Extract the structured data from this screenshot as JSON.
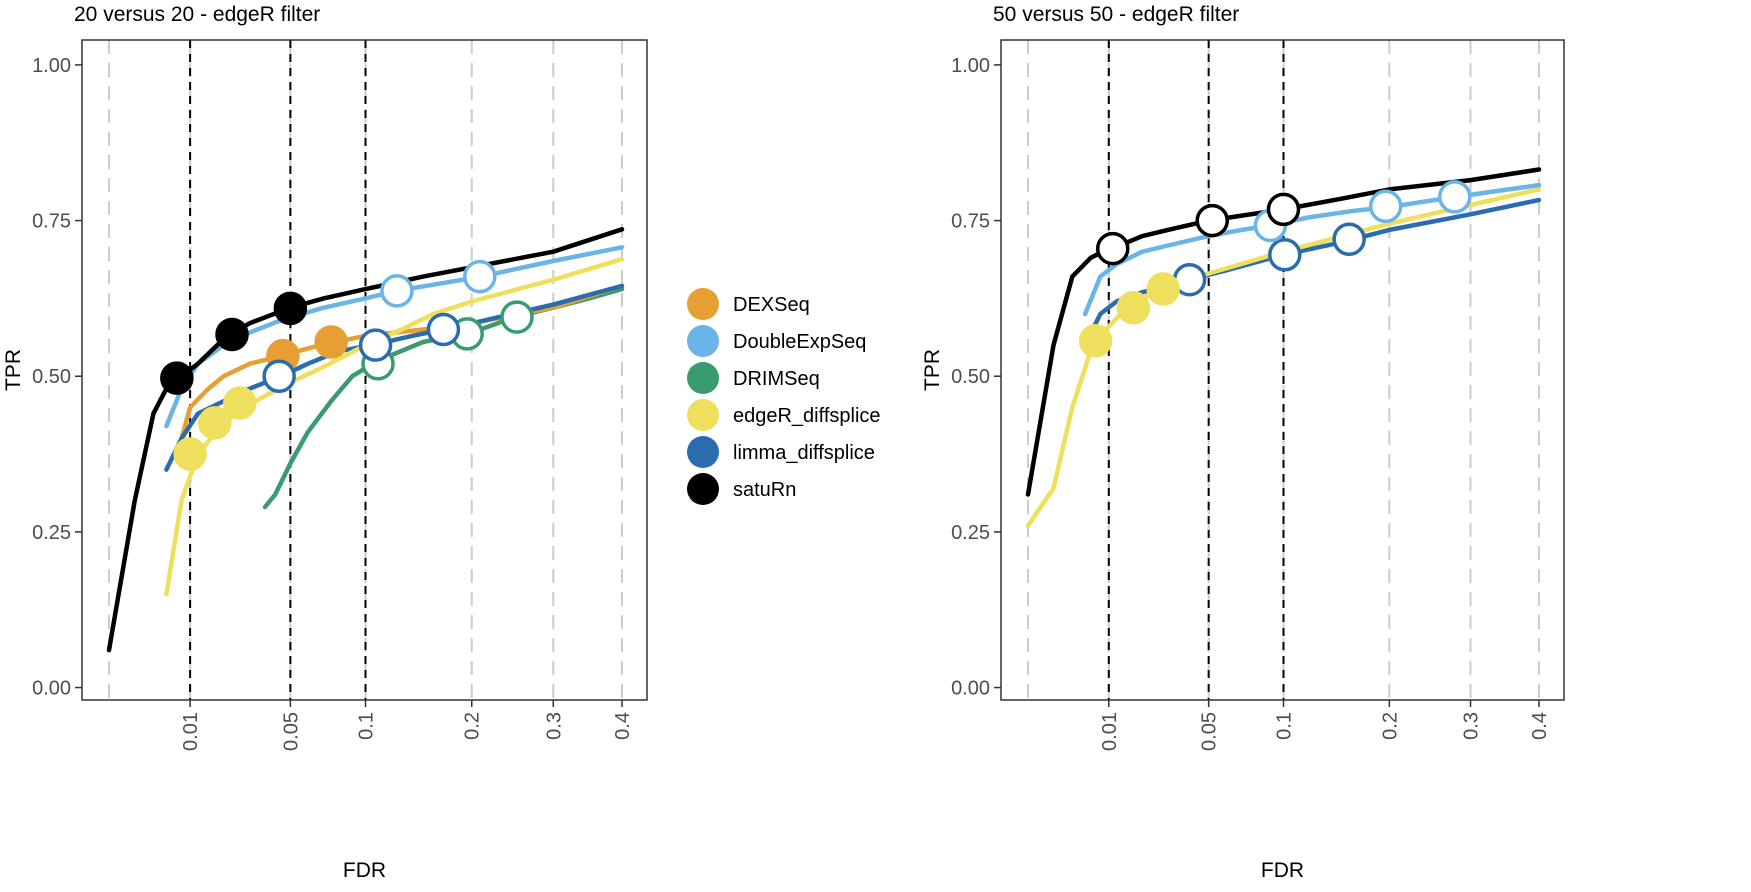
{
  "colors": {
    "DEXSeq": "#E69F32",
    "DoubleExpSeq": "#6AB4E8",
    "DRIMSeq": "#3A9A70",
    "edgeR_diffsplice": "#EEE05C",
    "limma_diffsplice": "#2A6CAE",
    "satuRn": "#000000",
    "grid": "#CCCCCC",
    "threshold": "#000000",
    "frame": "#333333"
  },
  "legend": {
    "placement": "between-panels",
    "items": [
      "DEXSeq",
      "DoubleExpSeq",
      "DRIMSeq",
      "edgeR_diffsplice",
      "limma_diffsplice",
      "satuRn"
    ]
  },
  "chart_data": [
    {
      "type": "line",
      "title": "20 versus 20 - edgeR filter",
      "xlabel": "FDR",
      "ylabel": "TPR",
      "xscale": "sqrt",
      "xlim": [
        0,
        0.4
      ],
      "ylim": [
        -0.02,
        1.04
      ],
      "xticks": [
        0.01,
        0.05,
        0.1,
        0.2,
        0.3,
        0.4
      ],
      "xtick_labels": [
        "0.01",
        "0.05",
        "0.1",
        "0.2",
        "0.3",
        "0.4"
      ],
      "yticks": [
        0,
        0.25,
        0.5,
        0.75,
        1.0
      ],
      "ytick_labels": [
        "0.00",
        "0.25",
        "0.50",
        "0.75",
        "1.00"
      ],
      "fdr_thresholds": [
        0.01,
        0.05,
        0.1
      ],
      "grid": true,
      "series": [
        {
          "name": "DRIMSeq",
          "x": [
            0.037,
            0.042,
            0.05,
            0.06,
            0.075,
            0.09,
            0.11,
            0.15,
            0.2,
            0.25,
            0.3,
            0.35,
            0.4
          ],
          "y": [
            0.29,
            0.31,
            0.36,
            0.41,
            0.46,
            0.5,
            0.525,
            0.555,
            0.57,
            0.595,
            0.61,
            0.625,
            0.64
          ],
          "points": [
            {
              "x": 0.11,
              "y": 0.52,
              "filled": false
            },
            {
              "x": 0.195,
              "y": 0.568,
              "filled": false
            },
            {
              "x": 0.253,
              "y": 0.595,
              "filled": false
            }
          ]
        },
        {
          "name": "DEXSeq",
          "x": [
            0.008,
            0.01,
            0.015,
            0.02,
            0.03,
            0.045,
            0.065,
            0.08,
            0.1,
            0.15,
            0.2,
            0.3,
            0.4
          ],
          "y": [
            0.4,
            0.45,
            0.48,
            0.5,
            0.52,
            0.533,
            0.548,
            0.556,
            0.565,
            0.575,
            0.585,
            0.61,
            0.645
          ],
          "points": [
            {
              "x": 0.046,
              "y": 0.533,
              "filled": true
            },
            {
              "x": 0.075,
              "y": 0.555,
              "filled": true
            }
          ]
        },
        {
          "name": "limma_diffsplice",
          "x": [
            0.005,
            0.008,
            0.012,
            0.02,
            0.03,
            0.045,
            0.06,
            0.08,
            0.105,
            0.14,
            0.17,
            0.2,
            0.3,
            0.4
          ],
          "y": [
            0.35,
            0.4,
            0.44,
            0.46,
            0.48,
            0.5,
            0.52,
            0.54,
            0.55,
            0.565,
            0.575,
            0.585,
            0.615,
            0.645
          ],
          "points": [
            {
              "x": 0.044,
              "y": 0.5,
              "filled": false
            },
            {
              "x": 0.108,
              "y": 0.55,
              "filled": false
            },
            {
              "x": 0.17,
              "y": 0.575,
              "filled": false
            }
          ]
        },
        {
          "name": "edgeR_diffsplice",
          "x": [
            0.005,
            0.008,
            0.012,
            0.02,
            0.03,
            0.05,
            0.07,
            0.1,
            0.13,
            0.16,
            0.2,
            0.3,
            0.4
          ],
          "y": [
            0.15,
            0.3,
            0.375,
            0.425,
            0.455,
            0.49,
            0.515,
            0.55,
            0.575,
            0.6,
            0.62,
            0.655,
            0.688
          ],
          "points": [
            {
              "x": 0.01,
              "y": 0.375,
              "filled": true
            },
            {
              "x": 0.017,
              "y": 0.425,
              "filled": true
            },
            {
              "x": 0.026,
              "y": 0.457,
              "filled": true
            }
          ]
        },
        {
          "name": "DoubleExpSeq",
          "x": [
            0.005,
            0.008,
            0.012,
            0.02,
            0.03,
            0.045,
            0.07,
            0.1,
            0.125,
            0.16,
            0.21,
            0.3,
            0.4
          ],
          "y": [
            0.42,
            0.48,
            0.52,
            0.55,
            0.57,
            0.59,
            0.61,
            0.625,
            0.637,
            0.647,
            0.66,
            0.685,
            0.707
          ],
          "points": [
            {
              "x": 0.126,
              "y": 0.637,
              "filled": false
            },
            {
              "x": 0.209,
              "y": 0.66,
              "filled": false
            }
          ]
        },
        {
          "name": "satuRn",
          "x": [
            0.0,
            0.001,
            0.003,
            0.005,
            0.008,
            0.012,
            0.02,
            0.03,
            0.05,
            0.07,
            0.1,
            0.15,
            0.2,
            0.3,
            0.4
          ],
          "y": [
            0.06,
            0.3,
            0.44,
            0.48,
            0.5,
            0.52,
            0.56,
            0.585,
            0.61,
            0.625,
            0.64,
            0.66,
            0.675,
            0.7,
            0.736
          ],
          "points": [
            {
              "x": 0.007,
              "y": 0.497,
              "filled": true
            },
            {
              "x": 0.023,
              "y": 0.567,
              "filled": true
            },
            {
              "x": 0.05,
              "y": 0.609,
              "filled": true
            }
          ]
        }
      ]
    },
    {
      "type": "line",
      "title": "50 versus 50 - edgeR filter",
      "xlabel": "FDR",
      "ylabel": "TPR",
      "xscale": "sqrt",
      "xlim": [
        0,
        0.4
      ],
      "ylim": [
        -0.02,
        1.04
      ],
      "xticks": [
        0.01,
        0.05,
        0.1,
        0.2,
        0.3,
        0.4
      ],
      "xtick_labels": [
        "0.01",
        "0.05",
        "0.1",
        "0.2",
        "0.3",
        "0.4"
      ],
      "yticks": [
        0,
        0.25,
        0.5,
        0.75,
        1.0
      ],
      "ytick_labels": [
        "0.00",
        "0.25",
        "0.50",
        "0.75",
        "1.00"
      ],
      "fdr_thresholds": [
        0.01,
        0.05,
        0.1
      ],
      "grid": true,
      "series": [
        {
          "name": "limma_diffsplice",
          "x": [
            0.005,
            0.008,
            0.012,
            0.02,
            0.03,
            0.04,
            0.06,
            0.1,
            0.15,
            0.2,
            0.3,
            0.4
          ],
          "y": [
            0.55,
            0.6,
            0.62,
            0.635,
            0.645,
            0.655,
            0.67,
            0.695,
            0.715,
            0.735,
            0.76,
            0.783
          ],
          "points": [
            {
              "x": 0.04,
              "y": 0.655,
              "filled": false
            },
            {
              "x": 0.101,
              "y": 0.695,
              "filled": false
            },
            {
              "x": 0.158,
              "y": 0.72,
              "filled": false
            }
          ]
        },
        {
          "name": "edgeR_diffsplice",
          "x": [
            0.0,
            0.001,
            0.003,
            0.006,
            0.01,
            0.015,
            0.02,
            0.03,
            0.05,
            0.1,
            0.2,
            0.3,
            0.4
          ],
          "y": [
            0.26,
            0.32,
            0.45,
            0.54,
            0.58,
            0.61,
            0.625,
            0.645,
            0.665,
            0.7,
            0.745,
            0.775,
            0.8
          ],
          "points": [
            {
              "x": 0.007,
              "y": 0.557,
              "filled": true
            },
            {
              "x": 0.017,
              "y": 0.61,
              "filled": true
            },
            {
              "x": 0.028,
              "y": 0.64,
              "filled": true
            }
          ]
        },
        {
          "name": "DoubleExpSeq",
          "x": [
            0.005,
            0.008,
            0.012,
            0.02,
            0.03,
            0.05,
            0.07,
            0.09,
            0.12,
            0.16,
            0.2,
            0.28,
            0.4
          ],
          "y": [
            0.6,
            0.66,
            0.68,
            0.7,
            0.71,
            0.725,
            0.735,
            0.742,
            0.755,
            0.765,
            0.772,
            0.788,
            0.807
          ],
          "points": [
            {
              "x": 0.09,
              "y": 0.742,
              "filled": false
            },
            {
              "x": 0.196,
              "y": 0.773,
              "filled": false
            },
            {
              "x": 0.279,
              "y": 0.788,
              "filled": false
            }
          ]
        },
        {
          "name": "satuRn",
          "x": [
            0.0,
            0.001,
            0.003,
            0.006,
            0.01,
            0.015,
            0.02,
            0.03,
            0.05,
            0.07,
            0.1,
            0.15,
            0.2,
            0.3,
            0.4
          ],
          "y": [
            0.31,
            0.55,
            0.66,
            0.69,
            0.705,
            0.715,
            0.725,
            0.735,
            0.75,
            0.758,
            0.768,
            0.785,
            0.8,
            0.815,
            0.832
          ],
          "points": [
            {
              "x": 0.011,
              "y": 0.705,
              "filled": false
            },
            {
              "x": 0.052,
              "y": 0.75,
              "filled": false
            },
            {
              "x": 0.1,
              "y": 0.768,
              "filled": false
            }
          ]
        }
      ]
    }
  ]
}
